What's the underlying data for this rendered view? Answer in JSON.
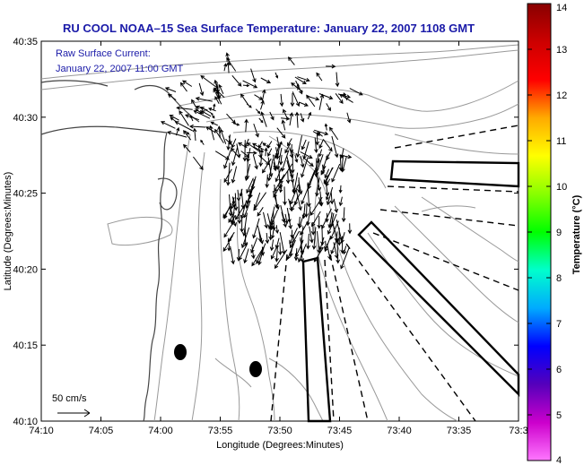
{
  "title": "RU COOL  NOAA–15  Sea Surface Temperature:  January 22, 2007 1108 GMT",
  "inset": {
    "line1": "Raw Surface Current:",
    "line2": "January 22, 2007 11:00 GMT"
  },
  "axes": {
    "xlabel": "Longitude (Degrees:Minutes)",
    "ylabel": "Latitude (Degrees:Minutes)",
    "xticks": [
      "74:10",
      "74:05",
      "74:00",
      "73:55",
      "73:50",
      "73:45",
      "73:40",
      "73:35",
      "73:3"
    ],
    "yticks": [
      "40:35",
      "40:30",
      "40:25",
      "40:20",
      "40:15",
      "40:10"
    ]
  },
  "colorbar": {
    "label": "Temperature (°C)",
    "ticks": [
      "14",
      "13",
      "12",
      "11",
      "10",
      "9",
      "8",
      "7",
      "6",
      "5",
      "4"
    ],
    "min": 4,
    "max": 14,
    "colors": [
      "#ff77ff",
      "#cc00cc",
      "#5500bb",
      "#0000ff",
      "#00aaff",
      "#00ffcc",
      "#00ff00",
      "#88ff00",
      "#ffff00",
      "#ffaa00",
      "#ff0000",
      "#cc0000",
      "#880000"
    ]
  },
  "scale_label": "50 cm/s",
  "colors": {
    "title": "#1a1aa8",
    "land_contour": "#999999",
    "shoreline": "#333333",
    "vectors": "#000000"
  }
}
